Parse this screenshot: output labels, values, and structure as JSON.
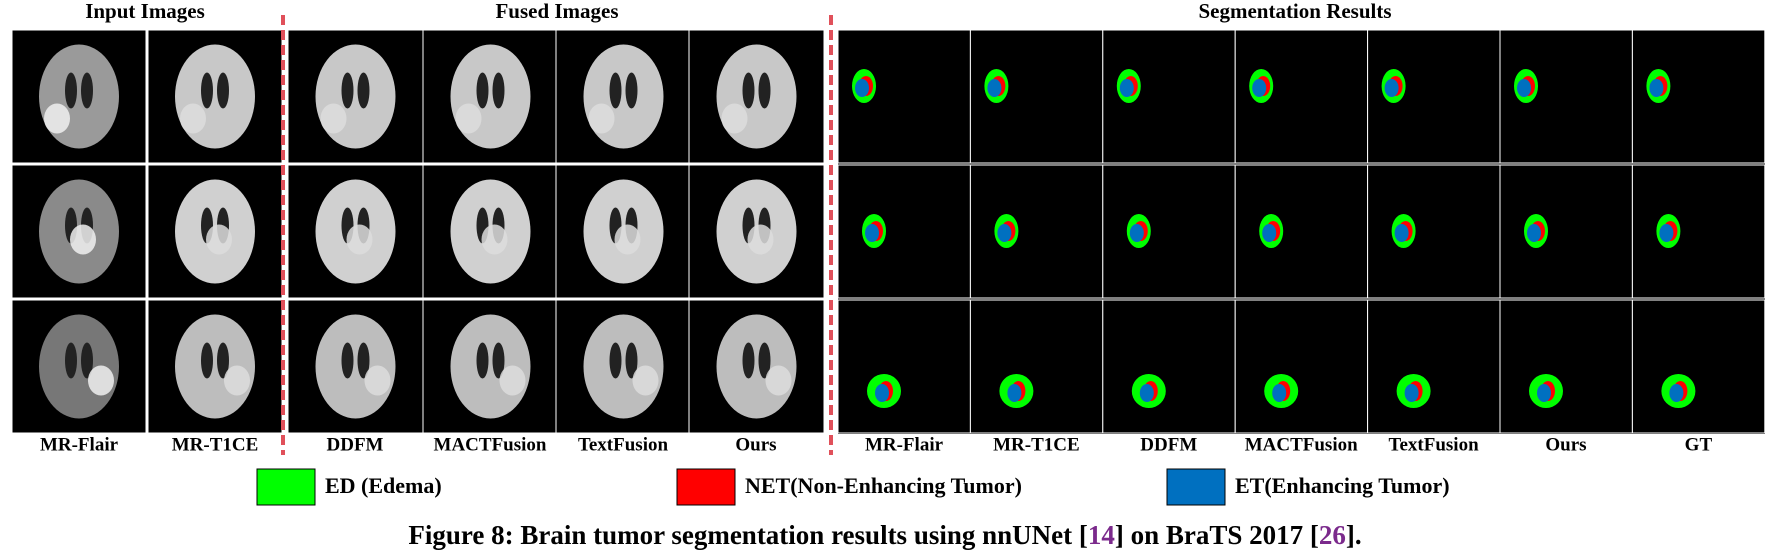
{
  "headers": [
    "Input Images",
    "Fused Images",
    "Segmentation Results"
  ],
  "input_labels": [
    "MR-Flair",
    "MR-T1CE"
  ],
  "fused_labels": [
    "DDFM",
    "MACTFusion",
    "TextFusion",
    "Ours"
  ],
  "segmentation_labels": [
    "MR-Flair",
    "MR-T1CE",
    "DDFM",
    "MACTFusion",
    "TextFusion",
    "Ours",
    "GT"
  ],
  "legend": [
    {
      "label": "ED (Edema)",
      "color": "#00ff00"
    },
    {
      "label": "NET(Non-Enhancing Tumor)",
      "color": "#ff0000"
    },
    {
      "label": "ET(Enhancing Tumor)",
      "color": "#0070c0"
    }
  ],
  "caption": {
    "prefix": "Figure 8: Brain tumor segmentation results using nnUNet [",
    "ref1": "14",
    "middle": "] on BraTS 2017 [",
    "ref2": "26",
    "suffix": "]."
  }
}
